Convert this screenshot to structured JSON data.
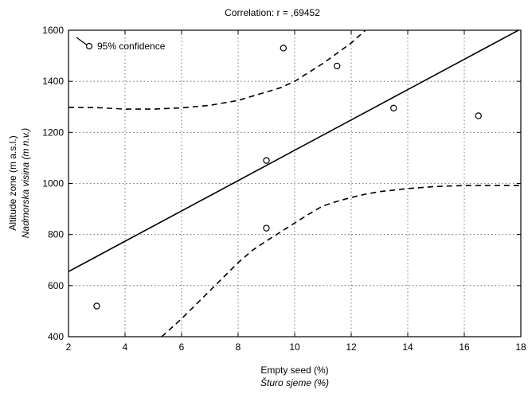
{
  "chart_data": {
    "type": "scatter",
    "title": "Correlation: r = ,69452",
    "xlabel": "Empty seed (%)",
    "xlabel_alt": "Šturo sjeme (%)",
    "ylabel": "Altitude zone (m a.s.l.)",
    "ylabel_alt": "Nadmorska visina (m n.v.)",
    "xlim": [
      2,
      18
    ],
    "ylim": [
      400,
      1600
    ],
    "xticks": [
      2,
      4,
      6,
      8,
      10,
      12,
      14,
      16,
      18
    ],
    "yticks": [
      400,
      600,
      800,
      1000,
      1200,
      1400,
      1600
    ],
    "grid": true,
    "legend_position": "top-left",
    "points": [
      {
        "x": 3.0,
        "y": 520
      },
      {
        "x": 9.0,
        "y": 825
      },
      {
        "x": 9.0,
        "y": 1090
      },
      {
        "x": 9.6,
        "y": 1530
      },
      {
        "x": 11.5,
        "y": 1460
      },
      {
        "x": 13.5,
        "y": 1295
      },
      {
        "x": 16.5,
        "y": 1265
      }
    ],
    "regression_line": {
      "x": [
        2,
        18
      ],
      "y": [
        655,
        1605
      ]
    },
    "confidence_upper": {
      "name": "95% confidence",
      "x": [
        2,
        3,
        4,
        5,
        6,
        7,
        8,
        8.5,
        9,
        9.5,
        10,
        10.5,
        11,
        11.5,
        12,
        12.5
      ],
      "y": [
        1298,
        1297,
        1291,
        1291,
        1296,
        1306,
        1325,
        1342,
        1358,
        1375,
        1400,
        1435,
        1470,
        1510,
        1550,
        1600
      ]
    },
    "confidence_lower": {
      "x": [
        5.3,
        6,
        7,
        8,
        8.5,
        9,
        9.5,
        10,
        10.5,
        11,
        11.5,
        12,
        12.5,
        13,
        14,
        15,
        16,
        17,
        18
      ],
      "y": [
        400,
        470,
        580,
        690,
        738,
        775,
        810,
        845,
        880,
        912,
        930,
        945,
        958,
        968,
        980,
        988,
        992,
        992,
        992
      ]
    },
    "colors": {
      "axis": "#000000",
      "grid": "#555555",
      "line": "#000000"
    }
  }
}
